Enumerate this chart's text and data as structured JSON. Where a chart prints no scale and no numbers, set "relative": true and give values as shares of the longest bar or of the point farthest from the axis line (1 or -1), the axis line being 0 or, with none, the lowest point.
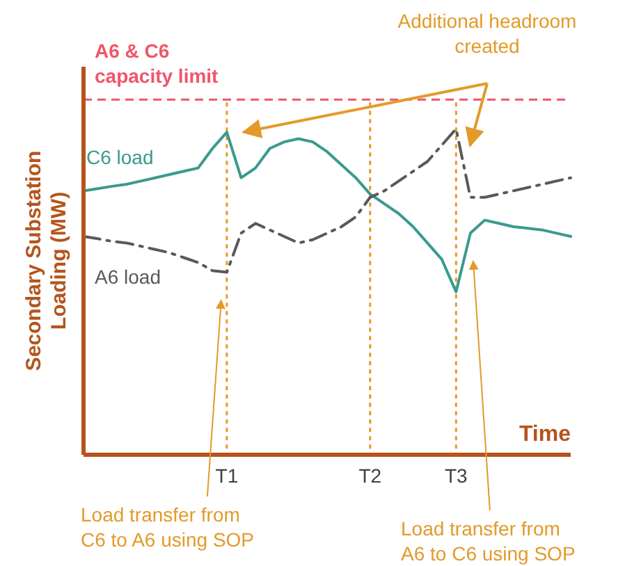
{
  "chart_data": {
    "type": "line",
    "relative": true,
    "xlabel": "Time",
    "ylabel": "Secondary Substation Loading (MW)",
    "tick_labels": "x",
    "grid": "x",
    "categories": [
      null,
      null,
      null,
      null,
      null,
      null,
      null,
      null,
      null,
      null,
      "T1",
      null,
      null,
      null,
      null,
      null,
      null,
      null,
      null,
      null,
      "T2",
      null,
      null,
      null,
      null,
      null,
      "T3",
      null,
      null,
      null,
      null,
      null,
      null,
      null,
      null
    ],
    "series": [
      {
        "name": "C6 load",
        "color": "#3a9a8e",
        "line_style": "solid",
        "values": [
          0.81,
          0.817,
          0.824,
          0.83,
          0.84,
          0.85,
          0.86,
          0.87,
          0.88,
          0.94,
          0.99,
          0.85,
          0.88,
          0.94,
          0.96,
          0.97,
          0.96,
          0.93,
          0.89,
          0.85,
          0.8,
          0.77,
          0.74,
          0.7,
          0.65,
          0.6,
          0.5,
          0.68,
          0.72,
          0.71,
          0.7,
          0.695,
          0.69,
          0.68,
          0.67
        ]
      },
      {
        "name": "A6 load",
        "color": "#595959",
        "line_style": "dashed",
        "values": [
          0.67,
          0.663,
          0.655,
          0.65,
          0.64,
          0.63,
          0.62,
          0.605,
          0.59,
          0.565,
          0.56,
          0.68,
          0.71,
          0.69,
          0.67,
          0.65,
          0.66,
          0.68,
          0.7,
          0.73,
          0.79,
          0.81,
          0.84,
          0.87,
          0.9,
          0.95,
          1.0,
          0.79,
          0.79,
          0.8,
          0.81,
          0.82,
          0.83,
          0.84,
          0.85
        ]
      }
    ],
    "ref_lines": [
      {
        "axis": "y",
        "value": 1.09,
        "label": "A6 & C6 capacity limit",
        "color": "#f0566a",
        "line_style": "dashed"
      }
    ],
    "annotations": [
      "Additional headroom created",
      "Load transfer from C6 to A6 using SOP",
      "Load transfer from A6 to C6 using SOP"
    ]
  }
}
